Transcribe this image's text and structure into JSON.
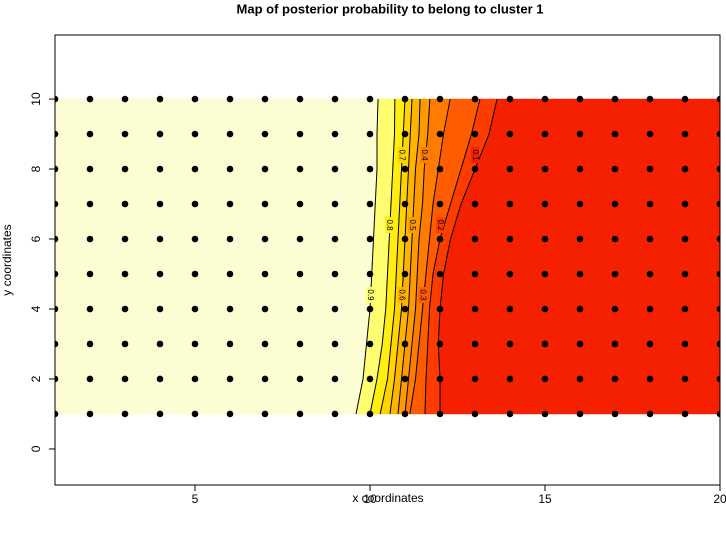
{
  "chart_data": {
    "type": "contour",
    "title": "Map of posterior probability to belong to cluster  1",
    "xlabel": "x coordinates",
    "ylabel": "y coordinates",
    "xlim": [
      1,
      20
    ],
    "ylim": [
      -1.03,
      11.83
    ],
    "xticks": [
      5,
      10,
      15,
      20
    ],
    "yticks": [
      0,
      2,
      4,
      6,
      8,
      10
    ],
    "grid_x": [
      1,
      2,
      3,
      4,
      5,
      6,
      7,
      8,
      9,
      10,
      11,
      12,
      13,
      14,
      15,
      16,
      17,
      18,
      19,
      20
    ],
    "grid_y": [
      1,
      2,
      3,
      4,
      5,
      6,
      7,
      8,
      9,
      10
    ],
    "point_color": "#000000",
    "contour_y": [
      1,
      2,
      3,
      4,
      5,
      6,
      7,
      8,
      9,
      10
    ],
    "contours": [
      {
        "level": 0.9,
        "x": [
          9.6,
          9.8,
          9.9,
          10.0,
          10.05,
          10.1,
          10.15,
          10.2,
          10.2,
          10.23
        ]
      },
      {
        "level": 0.8,
        "x": [
          10.0,
          10.2,
          10.35,
          10.45,
          10.5,
          10.55,
          10.6,
          10.65,
          10.7,
          10.71
        ]
      },
      {
        "level": 0.7,
        "x": [
          10.29,
          10.5,
          10.6,
          10.7,
          10.75,
          10.8,
          10.85,
          10.9,
          10.95,
          11.0
        ]
      },
      {
        "level": 0.6,
        "x": [
          10.57,
          10.7,
          10.8,
          10.9,
          10.95,
          11.0,
          11.05,
          11.1,
          11.15,
          11.2
        ]
      },
      {
        "level": 0.5,
        "x": [
          10.8,
          10.9,
          11.0,
          11.1,
          11.15,
          11.2,
          11.25,
          11.3,
          11.4,
          11.43
        ]
      },
      {
        "level": 0.4,
        "x": [
          11.0,
          11.1,
          11.2,
          11.3,
          11.35,
          11.4,
          11.5,
          11.55,
          11.65,
          11.71
        ]
      },
      {
        "level": 0.3,
        "x": [
          11.14,
          11.3,
          11.4,
          11.5,
          11.6,
          11.7,
          11.8,
          11.95,
          12.1,
          12.29
        ]
      },
      {
        "level": 0.2,
        "x": [
          11.57,
          11.6,
          11.65,
          11.7,
          11.8,
          12.0,
          12.3,
          12.6,
          12.9,
          13.14
        ]
      },
      {
        "level": 0.1,
        "x": [
          12.0,
          12.0,
          11.95,
          12.0,
          12.1,
          12.3,
          12.6,
          13.0,
          13.4,
          13.63
        ]
      }
    ],
    "band_colors": [
      "#fdfdd4",
      "#fefe70",
      "#ffee10",
      "#ffd400",
      "#ffb400",
      "#ff9a00",
      "#ff7c00",
      "#ff5c00",
      "#ff3c00",
      "#f42000"
    ]
  }
}
